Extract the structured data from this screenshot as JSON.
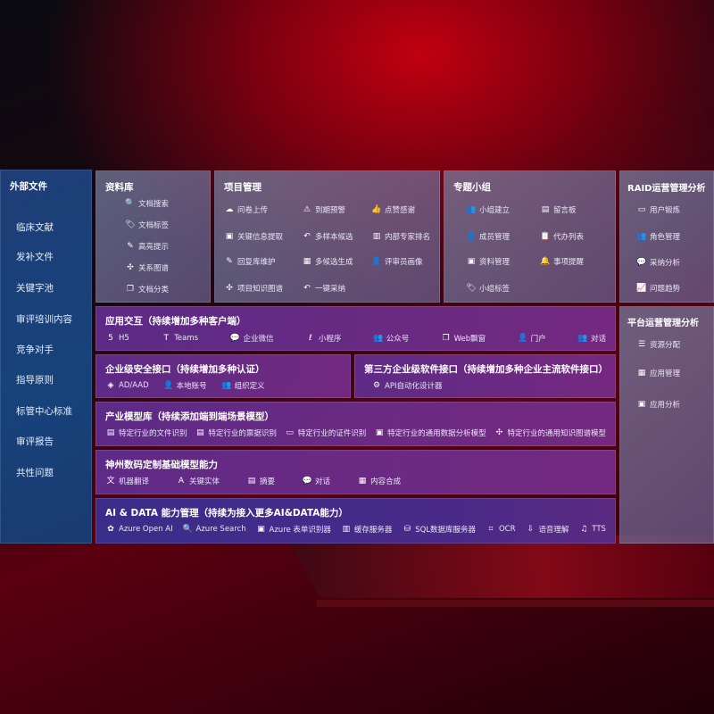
{
  "external_files": {
    "title": "外部文件",
    "items": [
      "临床文献",
      "发补文件",
      "关键字池",
      "审评培训内容",
      "竞争对手",
      "指导原则",
      "标管中心标准",
      "审评报告",
      "共性问题"
    ]
  },
  "library": {
    "title": "资料库",
    "items": [
      {
        "label": "文档搜索",
        "icon": "document-search-icon",
        "g": "🔍"
      },
      {
        "label": "文档标签",
        "icon": "tag-icon",
        "g": "🏷"
      },
      {
        "label": "高亮提示",
        "icon": "pen-icon",
        "g": "✎"
      },
      {
        "label": "关系图谱",
        "icon": "graph-icon",
        "g": "✣"
      },
      {
        "label": "文档分类",
        "icon": "documents-icon",
        "g": "❐"
      }
    ]
  },
  "project": {
    "title": "项目管理",
    "items": [
      {
        "label": "问卷上传",
        "icon": "cloud-upload-icon",
        "g": "☁"
      },
      {
        "label": "到期预警",
        "icon": "alarm-icon",
        "g": "⚠"
      },
      {
        "label": "点赞感谢",
        "icon": "thumbs-up-icon",
        "g": "👍"
      },
      {
        "label": "关键信息提取",
        "icon": "window-icon",
        "g": "▣"
      },
      {
        "label": "多样本候选",
        "icon": "reply-icon",
        "g": "↶"
      },
      {
        "label": "内部专家排名",
        "icon": "ranking-icon",
        "g": "▥"
      },
      {
        "label": "回复库维护",
        "icon": "edit-icon",
        "g": "✎"
      },
      {
        "label": "多候选生成",
        "icon": "puzzle-icon",
        "g": "▦"
      },
      {
        "label": "评审员画像",
        "icon": "user-icon",
        "g": "👤"
      },
      {
        "label": "项目知识图谱",
        "icon": "graph-icon",
        "g": "✣"
      },
      {
        "label": "一键采纳",
        "icon": "reply-icon",
        "g": "↶"
      }
    ]
  },
  "group": {
    "title": "专题小组",
    "items": [
      {
        "label": "小组建立",
        "icon": "group-icon",
        "g": "👥"
      },
      {
        "label": "留言板",
        "icon": "bbs-icon",
        "g": "▤"
      },
      {
        "label": "成员管理",
        "icon": "user-add-icon",
        "g": "👤"
      },
      {
        "label": "代办列表",
        "icon": "clipboard-icon",
        "g": "📋"
      },
      {
        "label": "资料管理",
        "icon": "folder-icon",
        "g": "▣"
      },
      {
        "label": "事项提醒",
        "icon": "bell-icon",
        "g": "🔔"
      },
      {
        "label": "小组标签",
        "icon": "tag-icon",
        "g": "🏷"
      }
    ]
  },
  "raid": {
    "title": "RAID运营管理分析",
    "items": [
      {
        "label": "用户锻炼",
        "icon": "id-card-icon",
        "g": "▭"
      },
      {
        "label": "角色管理",
        "icon": "users-icon",
        "g": "👥"
      },
      {
        "label": "采纳分析",
        "icon": "qa-icon",
        "g": "💬"
      },
      {
        "label": "问题趋势",
        "icon": "trend-icon",
        "g": "📈"
      }
    ]
  },
  "platform": {
    "title": "平台运营管理分析",
    "items": [
      {
        "label": "资源分配",
        "icon": "checklist-icon",
        "g": "☰"
      },
      {
        "label": "应用管理",
        "icon": "apps-icon",
        "g": "▦"
      },
      {
        "label": "应用分析",
        "icon": "analysis-icon",
        "g": "▣"
      }
    ]
  },
  "app_interaction": {
    "title": "应用交互（持续增加多种客户端）",
    "items": [
      {
        "label": "H5",
        "icon": "html5-icon",
        "g": "5"
      },
      {
        "label": "Teams",
        "icon": "teams-icon",
        "g": "T"
      },
      {
        "label": "企业微信",
        "icon": "wecom-icon",
        "g": "💬"
      },
      {
        "label": "小程序",
        "icon": "miniprogram-icon",
        "g": "ℓ"
      },
      {
        "label": "公众号",
        "icon": "official-account-icon",
        "g": "👥"
      },
      {
        "label": "Web飘窗",
        "icon": "window-icon",
        "g": "❐"
      },
      {
        "label": "门户",
        "icon": "portal-icon",
        "g": "👤"
      },
      {
        "label": "对话",
        "icon": "chat-users-icon",
        "g": "👥"
      }
    ]
  },
  "security": {
    "title": "企业级安全接口（持续增加多种认证）",
    "items": [
      {
        "label": "AD/AAD",
        "icon": "ad-icon",
        "g": "◈"
      },
      {
        "label": "本地账号",
        "icon": "local-account-icon",
        "g": "👤"
      },
      {
        "label": "组织定义",
        "icon": "organization-icon",
        "g": "👥"
      }
    ]
  },
  "third_party": {
    "title": "第三方企业级软件接口（持续增加多种企业主流软件接口）",
    "items": [
      {
        "label": "API自动化设计器",
        "icon": "gear-icon",
        "g": "⚙"
      }
    ]
  },
  "industry": {
    "title": "产业模型库（持续添加端到端场景模型）",
    "items": [
      {
        "label": "特定行业的文件识别",
        "icon": "file-icon",
        "g": "▤"
      },
      {
        "label": "特定行业的票据识别",
        "icon": "receipt-icon",
        "g": "▤"
      },
      {
        "label": "特定行业的证件识别",
        "icon": "id-card-icon",
        "g": "▭"
      },
      {
        "label": "特定行业的通用数据分析模型",
        "icon": "chart-icon",
        "g": "▣"
      },
      {
        "label": "特定行业的通用知识图谱模型",
        "icon": "graph-icon",
        "g": "✣"
      }
    ]
  },
  "base_model": {
    "title": "神州数码定制基础模型能力",
    "items": [
      {
        "label": "机器翻译",
        "icon": "translate-icon",
        "g": "文"
      },
      {
        "label": "关键实体",
        "icon": "entity-icon",
        "g": "A"
      },
      {
        "label": "摘要",
        "icon": "summary-icon",
        "g": "▤"
      },
      {
        "label": "对话",
        "icon": "chat-icon",
        "g": "💬"
      },
      {
        "label": "内容合成",
        "icon": "puzzle-icon",
        "g": "▦"
      }
    ]
  },
  "ai_data": {
    "title": "AI & DATA 能力管理（持续为接入更多AI&DATA能力）",
    "items": [
      {
        "label": "Azure Open AI",
        "icon": "openai-icon",
        "g": "✿"
      },
      {
        "label": "Azure Search",
        "icon": "search-doc-icon",
        "g": "🔍"
      },
      {
        "label": "Azure 表单识别器",
        "icon": "form-recognizer-icon",
        "g": "▣"
      },
      {
        "label": "缓存服务器",
        "icon": "cache-icon",
        "g": "▥"
      },
      {
        "label": "SQL数据库服务器",
        "icon": "database-icon",
        "g": "⛁"
      },
      {
        "label": "OCR",
        "icon": "ocr-icon",
        "g": "⌗"
      },
      {
        "label": "语音理解",
        "icon": "speech-icon",
        "g": "⇩"
      },
      {
        "label": "TTS",
        "icon": "tts-icon",
        "g": "♫"
      }
    ]
  }
}
